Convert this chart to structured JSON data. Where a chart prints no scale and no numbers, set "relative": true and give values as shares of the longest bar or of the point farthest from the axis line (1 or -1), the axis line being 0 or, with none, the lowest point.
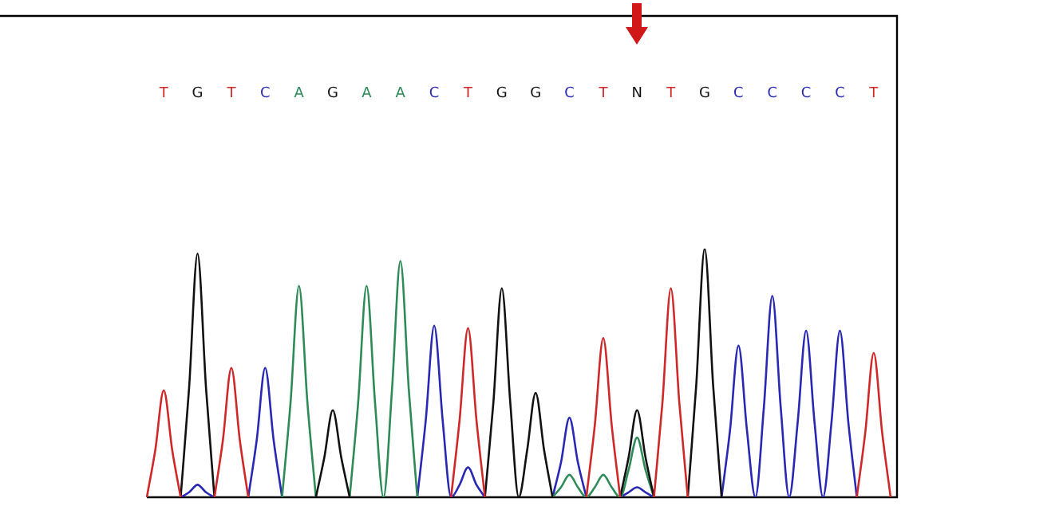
{
  "chart_data": {
    "type": "line",
    "relative": true,
    "grid": false,
    "legend": false,
    "marker": "none",
    "line_style": "solid",
    "categories": [
      null,
      null,
      "T",
      null,
      null,
      null,
      "G",
      null,
      null,
      null,
      "T",
      null,
      null,
      null,
      "C",
      null,
      null,
      null,
      "A",
      null,
      null,
      null,
      "G",
      null,
      null,
      null,
      "A",
      null,
      null,
      null,
      "A",
      null,
      null,
      null,
      "C",
      null,
      null,
      null,
      "T",
      null,
      null,
      null,
      "G",
      null,
      null,
      null,
      "G",
      null,
      null,
      null,
      "C",
      null,
      null,
      null,
      "T",
      null,
      null,
      null,
      "N",
      null,
      null,
      null,
      "T",
      null,
      null,
      null,
      "G",
      null,
      null,
      null,
      "C",
      null,
      null,
      null,
      "C",
      null,
      null,
      null,
      "C",
      null,
      null,
      null,
      "C",
      null,
      null,
      null,
      "T",
      null,
      null
    ],
    "series": [
      {
        "color": "#d02828",
        "values": [
          0,
          0.19,
          0.43,
          0.19,
          0,
          null,
          null,
          null,
          0,
          0.23,
          0.52,
          0.23,
          0,
          null,
          null,
          null,
          null,
          null,
          null,
          null,
          null,
          null,
          null,
          null,
          null,
          null,
          null,
          null,
          null,
          null,
          null,
          null,
          null,
          null,
          null,
          null,
          0,
          0.31,
          0.68,
          0.31,
          0,
          null,
          null,
          null,
          null,
          null,
          null,
          null,
          null,
          null,
          null,
          null,
          0,
          0.29,
          0.64,
          0.29,
          0,
          null,
          null,
          null,
          0,
          0.38,
          0.84,
          0.38,
          0,
          null,
          null,
          null,
          null,
          null,
          null,
          null,
          null,
          null,
          null,
          null,
          null,
          null,
          null,
          null,
          null,
          null,
          null,
          null,
          0,
          0.26,
          0.58,
          0.26,
          0
        ]
      },
      {
        "color": "#111111",
        "values": [
          null,
          null,
          null,
          null,
          0,
          0.44,
          0.98,
          0.44,
          0,
          null,
          null,
          null,
          null,
          null,
          null,
          null,
          null,
          null,
          null,
          null,
          0,
          0.16,
          0.35,
          0.16,
          0,
          null,
          null,
          null,
          null,
          null,
          null,
          null,
          null,
          null,
          null,
          null,
          null,
          null,
          null,
          null,
          0,
          0.38,
          0.84,
          0.38,
          0,
          0.19,
          0.42,
          0.19,
          0,
          null,
          null,
          null,
          null,
          null,
          null,
          null,
          0,
          0.16,
          0.35,
          0.16,
          0,
          null,
          null,
          null,
          0,
          0.45,
          1,
          0.45,
          0,
          null,
          null,
          null,
          null,
          null,
          null,
          null,
          null,
          null,
          null,
          null,
          null,
          null,
          null,
          null,
          null,
          null,
          null,
          null,
          null
        ]
      },
      {
        "color": "#2e8b57",
        "values": [
          null,
          null,
          null,
          null,
          null,
          null,
          null,
          null,
          null,
          null,
          null,
          null,
          null,
          null,
          null,
          null,
          0,
          0.38,
          0.85,
          0.38,
          0,
          null,
          null,
          null,
          0,
          0.38,
          0.85,
          0.38,
          0,
          0.43,
          0.95,
          0.43,
          0,
          null,
          null,
          null,
          null,
          null,
          null,
          null,
          null,
          null,
          null,
          null,
          null,
          null,
          null,
          null,
          0,
          0.04,
          0.09,
          0.04,
          0,
          0.04,
          0.09,
          0.04,
          0,
          0.11,
          0.24,
          0.11,
          0,
          null,
          null,
          null,
          null,
          null,
          null,
          null,
          null,
          null,
          null,
          null,
          null,
          null,
          null,
          null,
          null,
          null,
          null,
          null,
          null,
          null,
          null,
          null,
          null,
          null,
          null,
          null,
          null
        ]
      },
      {
        "color": "#2828b4",
        "values": [
          null,
          null,
          null,
          null,
          0,
          0.02,
          0.05,
          0.02,
          0,
          null,
          null,
          null,
          0,
          0.23,
          0.52,
          0.23,
          0,
          null,
          null,
          null,
          null,
          null,
          null,
          null,
          null,
          null,
          null,
          null,
          null,
          null,
          null,
          null,
          0,
          0.31,
          0.69,
          0.31,
          0,
          0.05,
          0.12,
          0.05,
          0,
          null,
          null,
          null,
          null,
          null,
          null,
          null,
          0,
          0.14,
          0.32,
          0.14,
          0,
          null,
          null,
          null,
          0,
          0.02,
          0.04,
          0.02,
          0,
          null,
          null,
          null,
          null,
          null,
          null,
          null,
          0,
          0.27,
          0.61,
          0.27,
          0,
          0.36,
          0.81,
          0.36,
          0,
          0.3,
          0.67,
          0.3,
          0,
          0.3,
          0.67,
          0.3,
          0,
          null,
          null,
          null,
          null
        ]
      }
    ]
  }
}
